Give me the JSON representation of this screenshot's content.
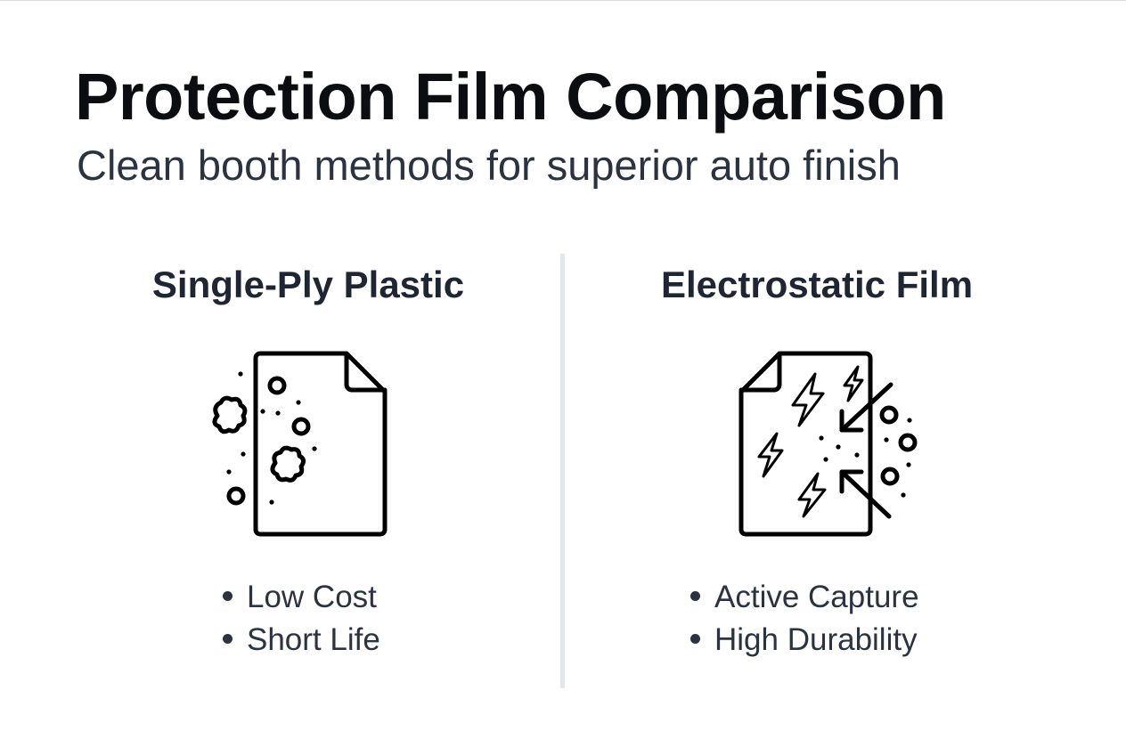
{
  "header": {
    "title": "Protection Film Comparison",
    "subtitle": "Clean booth methods for superior auto finish"
  },
  "columns": [
    {
      "heading": "Single-Ply Plastic",
      "icon": "document-with-dust-icon",
      "bullets": [
        "Low Cost",
        "Short Life"
      ]
    },
    {
      "heading": "Electrostatic Film",
      "icon": "document-with-static-charge-icon",
      "bullets": [
        "Active Capture",
        "High Durability"
      ]
    }
  ],
  "colors": {
    "text": "#0b0d10",
    "subtext": "#2a3342",
    "divider": "#e1e6ef"
  }
}
